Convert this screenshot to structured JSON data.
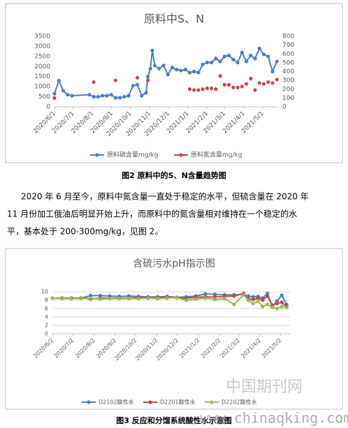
{
  "chart_data": [
    {
      "type": "line",
      "title": "原料中S、N",
      "x": [
        "2020/6/1",
        "2020/6/8",
        "2020/6/15",
        "2020/6/22",
        "2020/6/29",
        "2020/7/27",
        "2020/8/3",
        "2020/8/10",
        "2020/8/17",
        "2020/8/24",
        "2020/8/31",
        "2020/9/7",
        "2020/9/14",
        "2020/9/21",
        "2020/9/28",
        "2020/10/5",
        "2020/10/12",
        "2020/10/19",
        "2020/10/26",
        "2020/10/29",
        "2020/11/2",
        "2020/11/5",
        "2020/11/9",
        "2020/11/16",
        "2020/11/23",
        "2020/11/30",
        "2020/12/7",
        "2020/12/14",
        "2020/12/21",
        "2020/12/28",
        "2021/1/4",
        "2021/1/11",
        "2021/1/18",
        "2021/1/25",
        "2021/2/1",
        "2021/2/8",
        "2021/2/15",
        "2021/2/22",
        "2021/3/1",
        "2021/3/8",
        "2021/3/15",
        "2021/3/22",
        "2021/3/29",
        "2021/4/5",
        "2021/4/12",
        "2021/4/19",
        "2021/4/26",
        "2021/5/3",
        "2021/5/10",
        "2021/5/17",
        "2021/5/24"
      ],
      "xlim": [
        "2020/6/1",
        "2021/5/26"
      ],
      "xticks": [
        "2020/6/1",
        "2020/7/1",
        "2020/8/1",
        "2020/9/1",
        "2020/10/1",
        "2020/11/1",
        "2020/12/1",
        "2021/1/1",
        "2021/2/1",
        "2021/3/1",
        "2021/4/1",
        "2021/5/1"
      ],
      "ylim": [
        0,
        3500
      ],
      "yticks": [
        0,
        500,
        1000,
        1500,
        2000,
        2500,
        3000,
        3500
      ],
      "y2lim": [
        0,
        800
      ],
      "y2ticks": [
        0,
        100,
        200,
        300,
        400,
        500,
        600,
        700,
        800
      ],
      "grid": false,
      "series": [
        {
          "name": "原料硫含量mg/kg",
          "color": "#4a7ebb",
          "line": true,
          "values": [
            650,
            1300,
            800,
            600,
            550,
            600,
            500,
            500,
            550,
            550,
            600,
            450,
            450,
            500,
            550,
            1050,
            1100,
            550,
            700,
            1500,
            1900,
            2800,
            2050,
            1900,
            2050,
            1600,
            1950,
            1850,
            1800,
            1850,
            1700,
            1750,
            1700,
            2100,
            2200,
            2200,
            2400,
            2250,
            2500,
            2550,
            2350,
            2200,
            2700,
            2250,
            2550,
            2400,
            2900,
            2600,
            2500,
            1750,
            2250
          ]
        },
        {
          "name": "原料氮含量mg/kg",
          "color": "#be4b48",
          "line": false,
          "axis": "y2",
          "values": [
            100,
            null,
            null,
            null,
            null,
            null,
            280,
            null,
            null,
            null,
            null,
            300,
            null,
            null,
            null,
            null,
            330,
            null,
            null,
            300,
            null,
            null,
            null,
            null,
            null,
            null,
            null,
            null,
            null,
            null,
            200,
            190,
            190,
            200,
            210,
            210,
            200,
            350,
            250,
            250,
            220,
            220,
            230,
            260,
            320,
            190,
            270,
            260,
            280,
            270,
            310
          ]
        }
      ]
    },
    {
      "type": "line",
      "title": "含硫污水pH指示图",
      "x": [
        "2020/6/2",
        "2020/6/16",
        "2020/6/30",
        "2020/7/14",
        "2020/7/28",
        "2020/8/11",
        "2020/8/25",
        "2020/9/8",
        "2020/9/22",
        "2020/10/6",
        "2020/10/20",
        "2020/11/3",
        "2020/11/17",
        "2020/12/1",
        "2020/12/15",
        "2020/12/29",
        "2021/1/12",
        "2021/1/26",
        "2021/2/9",
        "2021/2/23",
        "2021/3/9",
        "2021/3/16",
        "2021/3/23",
        "2021/3/30",
        "2021/4/6",
        "2021/4/13",
        "2021/4/20",
        "2021/4/27",
        "2021/5/4",
        "2021/5/11"
      ],
      "xlim": [
        "2020/6/2",
        "2021/5/16"
      ],
      "xticks": [
        "2020/6/2",
        "2020/7/2",
        "2020/8/2",
        "2020/9/2",
        "2020/10/2",
        "2020/11/2",
        "2020/12/2",
        "2021/1/2",
        "2021/2/2",
        "2021/3/2",
        "2021/4/2",
        "2021/5/2"
      ],
      "ylim": [
        0,
        10
      ],
      "yticks": [
        0,
        2,
        4,
        6,
        8,
        10
      ],
      "grid": true,
      "series": [
        {
          "name": "D2102酸性水",
          "color": "#4a7ebb",
          "line": true,
          "values": [
            8.5,
            8.5,
            8.5,
            8.5,
            9.1,
            9.1,
            9.0,
            8.9,
            9.0,
            8.9,
            8.8,
            8.8,
            8.9,
            8.7,
            8.8,
            9.0,
            9.5,
            9.4,
            9.3,
            9.3,
            9.4,
            9.0,
            8.8,
            8.9,
            8.5,
            9.6,
            6.5,
            7.8,
            9.2,
            7.0
          ]
        },
        {
          "name": "D2201酸性水",
          "color": "#be4b48",
          "line": true,
          "values": [
            8.5,
            8.5,
            8.5,
            8.5,
            8.3,
            8.5,
            8.5,
            8.5,
            8.5,
            8.6,
            8.6,
            8.6,
            8.7,
            8.6,
            8.5,
            8.7,
            8.8,
            8.8,
            8.9,
            9.0,
            9.6,
            8.3,
            8.2,
            8.5,
            8.0,
            9.0,
            6.8,
            7.2,
            7.5,
            6.5
          ]
        },
        {
          "name": "D2202酸性水",
          "color": "#98b954",
          "line": true,
          "values": [
            8.5,
            8.4,
            8.4,
            8.4,
            8.5,
            8.3,
            8.4,
            8.4,
            8.4,
            8.4,
            8.5,
            8.4,
            8.5,
            8.6,
            8.0,
            8.3,
            8.5,
            8.2,
            8.4,
            7.0,
            9.3,
            8.0,
            7.2,
            7.8,
            6.5,
            7.0,
            6.3,
            6.0,
            6.5,
            6.3
          ]
        }
      ]
    }
  ],
  "captions": [
    "图2 原料中的S、N含量趋势图",
    "图3 反应和分馏系统酸性水示意图"
  ],
  "paragraph": [
    "2020 年 6 月至今，原料中氮含量一直处于稳定的水平，但硫含量在 2020 年",
    "11 月份加工俄油后明显开始上升，而原料中的氮含量相对维持在一个稳定的水",
    "平，基本处于 200-300mg/kg，见图 2。"
  ],
  "watermark": [
    "中国期刊网",
    "www.chinaqking.com"
  ]
}
